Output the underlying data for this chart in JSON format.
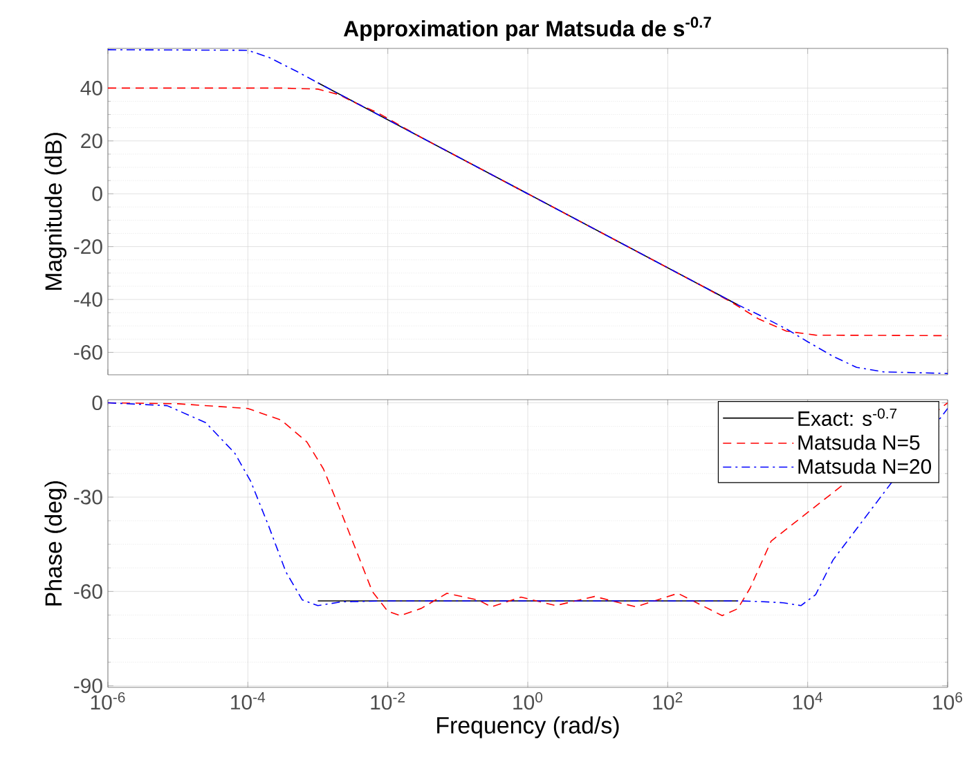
{
  "chart_data": [
    {
      "type": "line",
      "title": "Approximation par Matsuda de s$^{-0.7}$",
      "ylabel": "Magnitude (dB)",
      "log": "x",
      "grid": true,
      "legend": false,
      "tick_labels": "y",
      "xlim": [
        1e-06,
        1000000.0
      ],
      "xticks": [
        {
          "value": 1e-06,
          "label": null
        },
        {
          "value": 0.0001,
          "label": null
        },
        {
          "value": 0.01,
          "label": null
        },
        {
          "value": 1,
          "label": null
        },
        {
          "value": 100,
          "label": null
        },
        {
          "value": 10000.0,
          "label": null
        },
        {
          "value": 1000000.0,
          "label": null
        }
      ],
      "ylim": [
        -68.5,
        55
      ],
      "yticks": [
        -60,
        -40,
        -20,
        0,
        20,
        40
      ],
      "series": [
        {
          "color": "#000000",
          "line_style": "solid",
          "x": [
            0.001,
            1,
            1000
          ],
          "values": [
            42,
            0,
            -42
          ]
        },
        {
          "color": "#ff0000",
          "line_style": "dashed",
          "x": [
            1e-06,
            0.0003,
            0.001,
            0.002,
            0.003,
            0.007,
            0.03,
            1,
            30,
            300,
            800,
            2000,
            5000,
            13000,
            1000000.0
          ],
          "values": [
            40,
            40,
            39.6,
            37.5,
            35.1,
            30.8,
            21.3,
            0,
            -20.7,
            -34.7,
            -40.9,
            -47.4,
            -52,
            -53.5,
            -53.7
          ]
        },
        {
          "color": "#0000ff",
          "line_style": "dashdot",
          "x": [
            1e-06,
            0.0001,
            0.0002,
            0.0005,
            0.001,
            0.01,
            1,
            100,
            1000,
            2000,
            5000,
            10000,
            23000,
            50000,
            120000,
            1000000.0
          ],
          "values": [
            54.5,
            54.3,
            51.6,
            46.3,
            42,
            28,
            0,
            -28,
            -42,
            -45.8,
            -51.2,
            -56,
            -61.5,
            -65.7,
            -67.4,
            -68
          ]
        }
      ]
    },
    {
      "type": "line",
      "xlabel": "Frequency  (rad/s)",
      "ylabel": "Phase (deg)",
      "log": "x",
      "grid": true,
      "legend": "top right",
      "xlim": [
        1e-06,
        1000000.0
      ],
      "xticks": [
        {
          "value": 1e-06,
          "label": "10$^{-6}$"
        },
        {
          "value": 0.0001,
          "label": "10$^{-4}$"
        },
        {
          "value": 0.01,
          "label": "10$^{-2}$"
        },
        {
          "value": 1,
          "label": "10$^{0}$"
        },
        {
          "value": 100,
          "label": "10$^{2}$"
        },
        {
          "value": 10000.0,
          "label": "10$^{4}$"
        },
        {
          "value": 1000000.0,
          "label": "10$^{6}$"
        }
      ],
      "ylim": [
        -90.5,
        1
      ],
      "yticks": [
        -90,
        -60,
        -30,
        0
      ],
      "series": [
        {
          "name": "Exact: s$^{-0.7}$",
          "color": "#000000",
          "line_style": "solid",
          "x": [
            0.001,
            1000
          ],
          "values": [
            -63,
            -63
          ]
        },
        {
          "name": "Matsuda N=5",
          "color": "#ff0000",
          "line_style": "dashed",
          "x": [
            1e-06,
            1e-05,
            0.0001,
            0.0003,
            0.0007,
            0.0012,
            0.002,
            0.004,
            0.006,
            0.01,
            0.015,
            0.03,
            0.07,
            0.2,
            0.3,
            0.8,
            2.5,
            9,
            35,
            140,
            600,
            1000,
            1500,
            3000,
            5000,
            8000,
            15000,
            60000,
            200000,
            1000000.0
          ],
          "values": [
            0,
            -0.3,
            -1.8,
            -5.5,
            -12.5,
            -21,
            -33,
            -50,
            -60,
            -66.3,
            -67.7,
            -65.4,
            -60.6,
            -62.8,
            -64.9,
            -61.8,
            -64.5,
            -61.6,
            -64.9,
            -60.6,
            -67.7,
            -65.5,
            -59,
            -44,
            null,
            null,
            null,
            null,
            null,
            0
          ]
        },
        {
          "name": "Matsuda N=20",
          "color": "#0000ff",
          "line_style": "dashdot",
          "x": [
            1e-06,
            7e-06,
            2.5e-05,
            6.5e-05,
            0.00011,
            0.0002,
            0.00035,
            0.0006,
            0.001,
            0.0022,
            0.01,
            1000,
            2000,
            4500,
            8000,
            13000,
            23000,
            40000,
            70000,
            120000,
            300000,
            1000000.0
          ],
          "values": [
            0,
            -0.9,
            -6.3,
            -16,
            -25,
            -39.4,
            -53.8,
            -62.7,
            -64.5,
            -63.3,
            -63,
            -63,
            -63.2,
            -63.6,
            -64.5,
            -61,
            -50,
            null,
            null,
            null,
            null,
            -1.8
          ]
        }
      ]
    }
  ]
}
